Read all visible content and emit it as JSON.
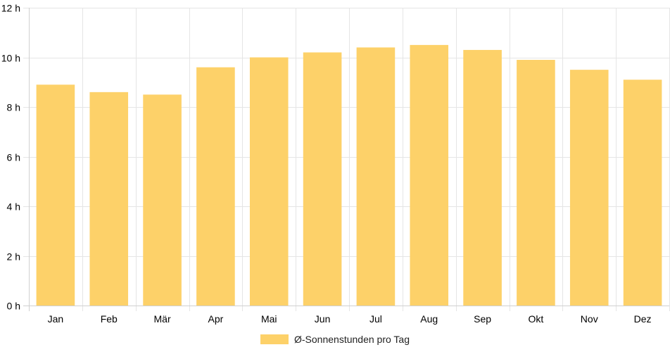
{
  "chart_data": {
    "type": "bar",
    "categories": [
      "Jan",
      "Feb",
      "Mär",
      "Apr",
      "Mai",
      "Jun",
      "Jul",
      "Aug",
      "Sep",
      "Okt",
      "Nov",
      "Dez"
    ],
    "series": [
      {
        "name": "Ø-Sonnenstunden pro Tag",
        "values": [
          8.9,
          8.6,
          8.5,
          9.6,
          10.0,
          10.2,
          10.4,
          10.5,
          10.3,
          9.9,
          9.5,
          9.1
        ],
        "color": "#fdd169"
      }
    ],
    "y_ticks": [
      "0 h",
      "2 h",
      "4 h",
      "6 h",
      "8 h",
      "10 h",
      "12 h"
    ],
    "ylim": [
      0,
      12
    ],
    "grid": true,
    "legend_position": "bottom"
  }
}
